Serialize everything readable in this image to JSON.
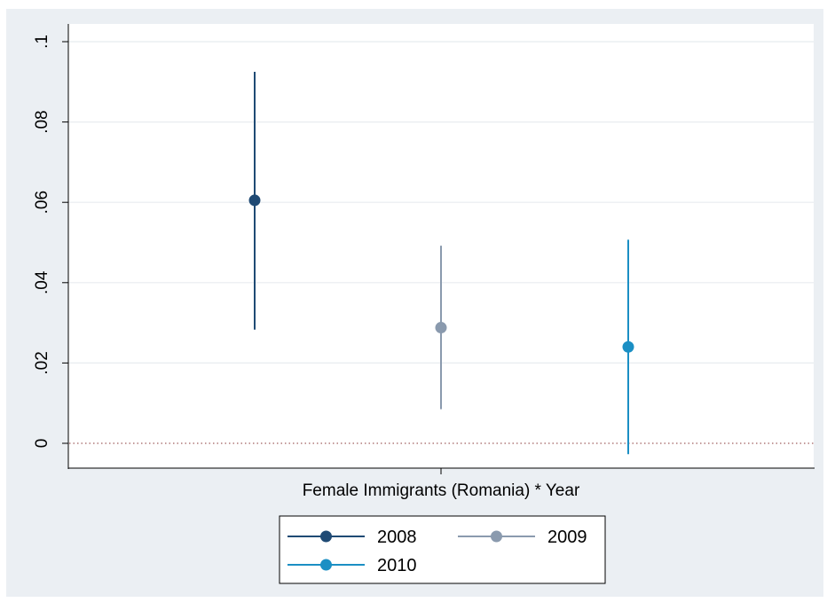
{
  "chart_data": {
    "type": "scatter",
    "subtype": "coefficient-plot-with-confidence-intervals",
    "title": "",
    "xlabel": "Female Immigrants (Romania) * Year",
    "ylabel": "",
    "ylim": [
      -0.006,
      0.1
    ],
    "yticks": [
      0,
      0.02,
      0.04,
      0.06,
      0.08,
      0.1
    ],
    "ytick_labels": [
      "0",
      ".02",
      ".04",
      ".06",
      ".08",
      ".1"
    ],
    "grid": "horizontal",
    "reference_line": {
      "y": 0,
      "style": "dotted",
      "color": "#b07a7a"
    },
    "legend": {
      "position": "bottom",
      "columns": 2
    },
    "series": [
      {
        "name": "2008",
        "color": "#1f4a74",
        "estimate": 0.0605,
        "ci_low": 0.0283,
        "ci_high": 0.0925
      },
      {
        "name": "2009",
        "color": "#8a9aae",
        "estimate": 0.0288,
        "ci_low": 0.0085,
        "ci_high": 0.0492
      },
      {
        "name": "2010",
        "color": "#1b8fc4",
        "estimate": 0.024,
        "ci_low": -0.0027,
        "ci_high": 0.0507
      }
    ]
  }
}
